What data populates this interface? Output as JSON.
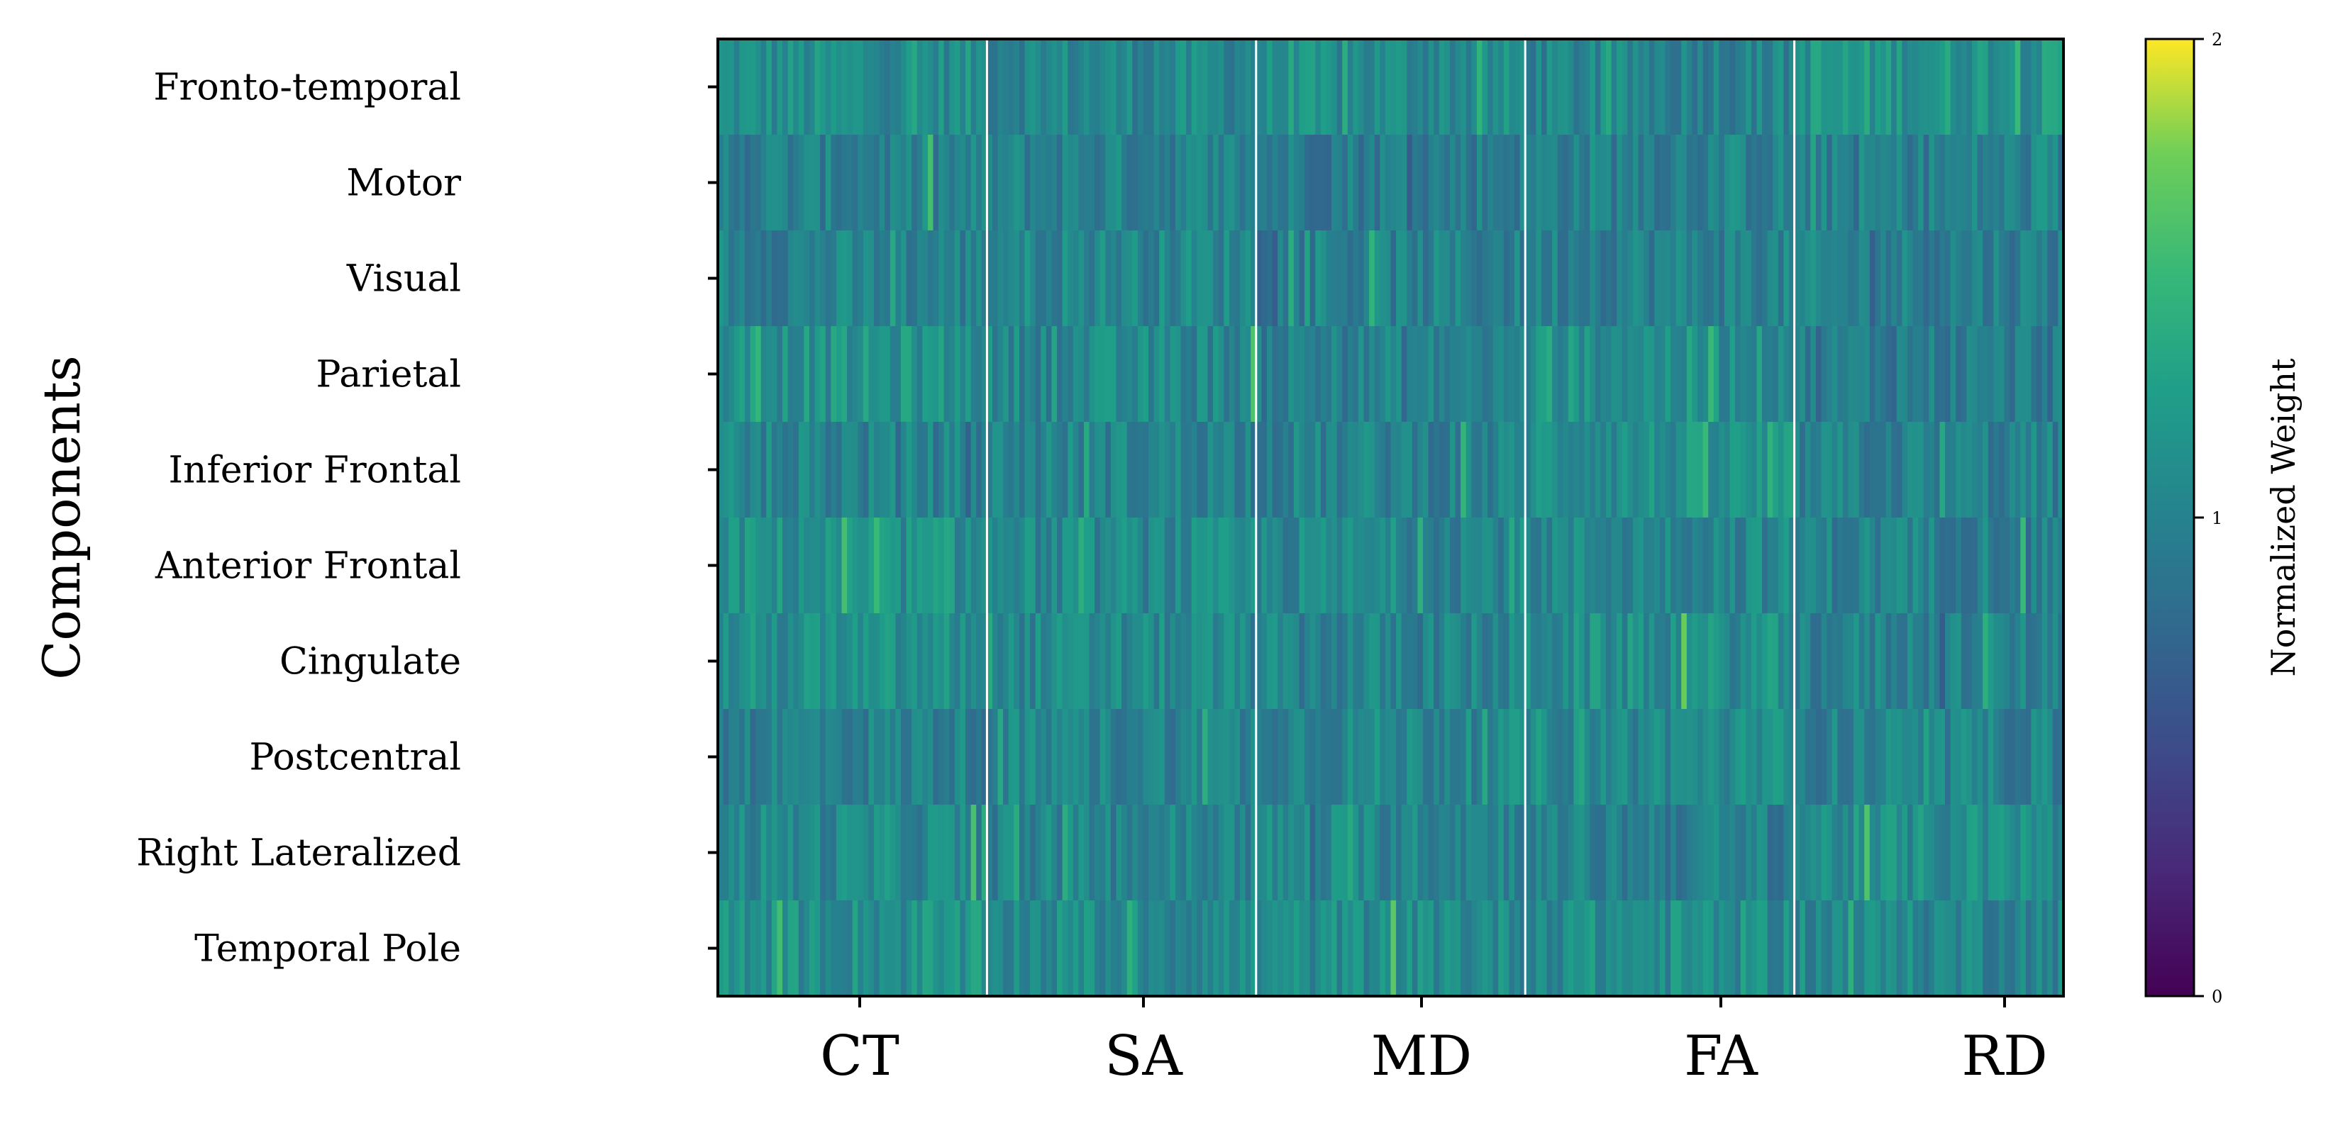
{
  "chart_data": {
    "type": "heatmap",
    "ylabel": "Components",
    "rows": [
      "Fronto-temporal",
      "Motor",
      "Visual",
      "Parietal",
      "Inferior Frontal",
      "Anterior Frontal",
      "Cingulate",
      "Postcentral",
      "Right Lateralized",
      "Temporal Pole"
    ],
    "column_groups": [
      "CT",
      "SA",
      "MD",
      "FA",
      "RD"
    ],
    "group_separators": true,
    "colormap": "viridis",
    "colorbar": {
      "label": "Normalized Weight",
      "range": [
        0,
        2
      ],
      "ticks": [
        "0",
        "1",
        "2"
      ]
    },
    "row_group_means": [
      [
        1.1,
        1.05,
        1.08,
        1.02,
        1.18
      ],
      [
        0.98,
        1.0,
        0.96,
        1.0,
        0.98
      ],
      [
        1.0,
        1.06,
        0.98,
        1.0,
        0.98
      ],
      [
        1.14,
        1.05,
        0.98,
        1.12,
        0.95
      ],
      [
        1.0,
        1.02,
        1.0,
        1.12,
        0.98
      ],
      [
        1.12,
        1.05,
        1.05,
        1.05,
        1.0
      ],
      [
        1.1,
        1.05,
        1.0,
        1.1,
        1.0
      ],
      [
        1.0,
        1.02,
        1.05,
        1.08,
        1.0
      ],
      [
        1.06,
        1.02,
        1.05,
        0.98,
        1.1
      ],
      [
        1.12,
        1.08,
        1.08,
        1.1,
        1.05
      ]
    ]
  }
}
